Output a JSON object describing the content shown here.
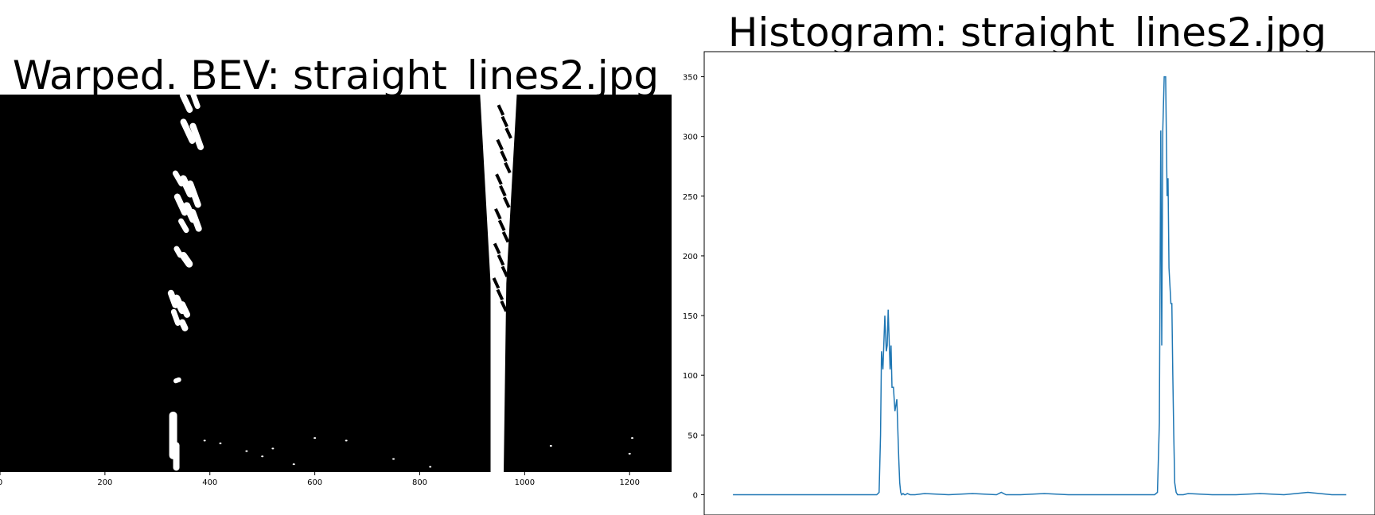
{
  "chart_data": [
    {
      "type": "image",
      "title": "Warped. BEV: straight_lines2.jpg",
      "xticks": [
        0,
        200,
        400,
        600,
        800,
        1000,
        1200
      ],
      "xlim": [
        0,
        1280
      ],
      "ylim": [
        720,
        0
      ],
      "background_color": "#000000",
      "foreground_color": "#ffffff"
    },
    {
      "type": "line",
      "title": "Histogram: straight_lines2.jpg",
      "xlim": [
        -60,
        1340
      ],
      "ylim": [
        -17,
        371
      ],
      "yticks": [
        0,
        50,
        100,
        150,
        200,
        250,
        300,
        350
      ],
      "grid": false,
      "line_color": "#1f77b4",
      "x": [
        0,
        280,
        300,
        305,
        308,
        310,
        313,
        317,
        320,
        322,
        324,
        326,
        328,
        330,
        332,
        335,
        338,
        342,
        346,
        348,
        350,
        352,
        355,
        358,
        360,
        364,
        370,
        380,
        400,
        450,
        500,
        550,
        560,
        570,
        600,
        650,
        700,
        750,
        800,
        850,
        880,
        886,
        890,
        893,
        895,
        897,
        900,
        903,
        906,
        908,
        910,
        912,
        914,
        916,
        918,
        920,
        922,
        925,
        928,
        932,
        937,
        940,
        950,
        1000,
        1050,
        1100,
        1150,
        1200,
        1250,
        1280
      ],
      "y": [
        0,
        0,
        0,
        2,
        50,
        120,
        105,
        150,
        120,
        125,
        155,
        130,
        105,
        125,
        90,
        90,
        70,
        80,
        30,
        10,
        2,
        0,
        1,
        0,
        0,
        1,
        0,
        0,
        1,
        0,
        1,
        0,
        2,
        0,
        0,
        1,
        0,
        0,
        0,
        0,
        0,
        2,
        60,
        305,
        125,
        305,
        350,
        350,
        250,
        265,
        190,
        175,
        160,
        160,
        100,
        50,
        10,
        2,
        0,
        0,
        0,
        0,
        1,
        0,
        0,
        1,
        0,
        2,
        0,
        0
      ]
    }
  ]
}
